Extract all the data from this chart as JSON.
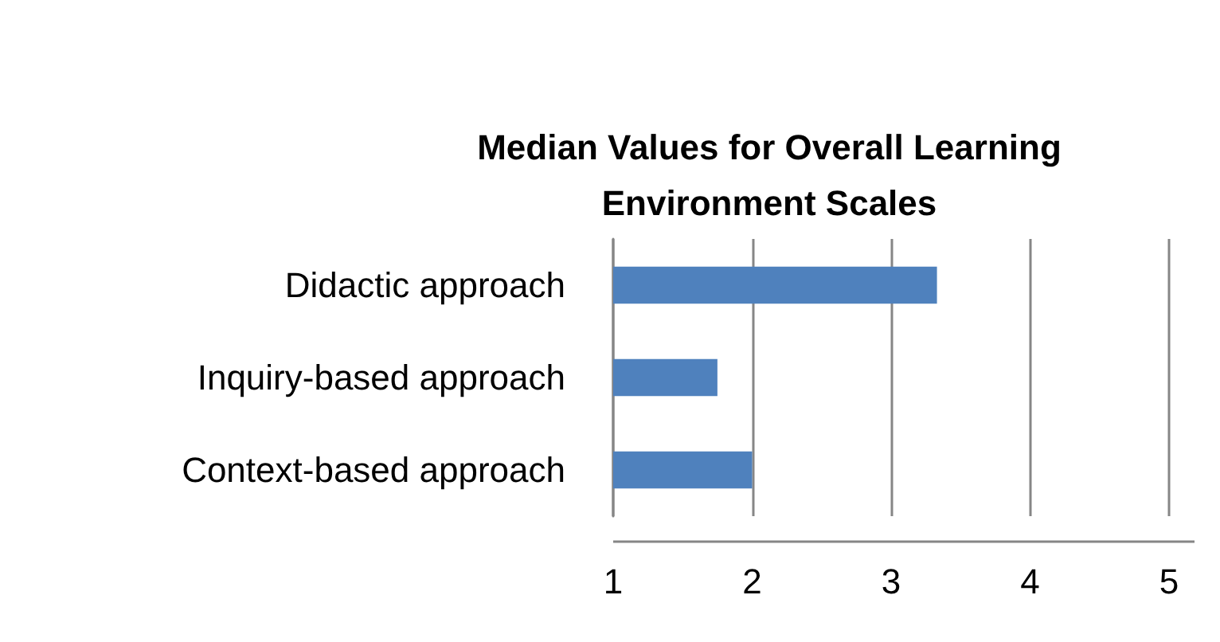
{
  "chart_data": {
    "type": "bar",
    "orientation": "horizontal",
    "title": "Median Values for Overall Learning\nEnvironment Scales",
    "categories": [
      "Didactic approach",
      "Inquiry-based approach",
      "Context-based approach"
    ],
    "values": [
      3.33,
      1.75,
      2.0
    ],
    "color": "#4f81bd",
    "xlim": [
      1,
      5
    ],
    "xticks": [
      1,
      2,
      3,
      4,
      5
    ],
    "grid": "x"
  }
}
